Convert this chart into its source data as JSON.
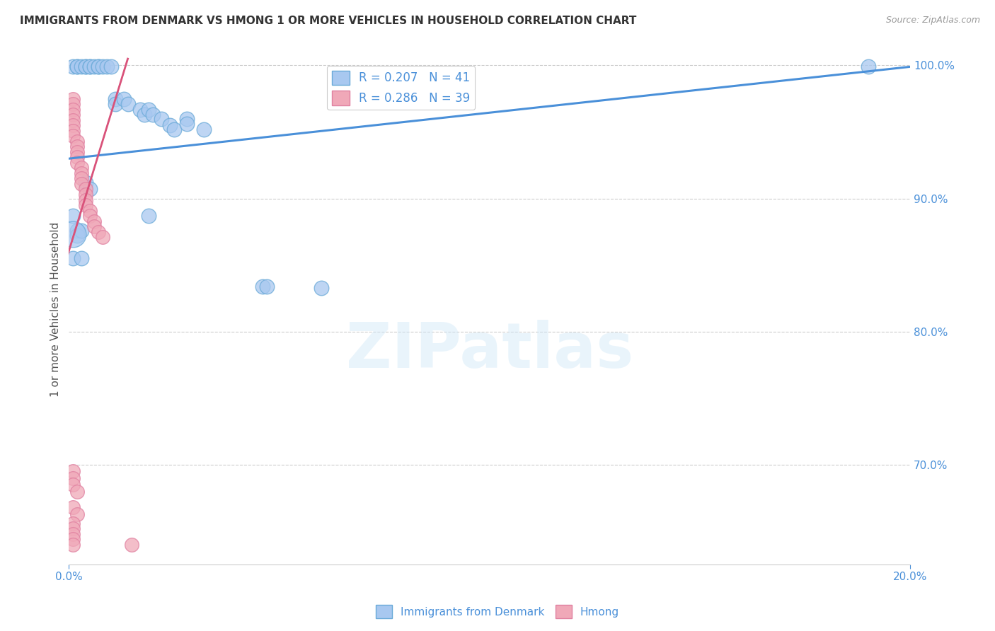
{
  "title": "IMMIGRANTS FROM DENMARK VS HMONG 1 OR MORE VEHICLES IN HOUSEHOLD CORRELATION CHART",
  "source": "Source: ZipAtlas.com",
  "ylabel": "1 or more Vehicles in Household",
  "x_min": 0.0,
  "x_max": 0.2,
  "y_min": 0.625,
  "y_max": 1.008,
  "y_ticks": [
    0.7,
    0.8,
    0.9,
    1.0
  ],
  "y_tick_labels": [
    "70.0%",
    "80.0%",
    "90.0%",
    "100.0%"
  ],
  "legend_entries": [
    {
      "label": "R = 0.207   N = 41",
      "color": "#a8c8f0"
    },
    {
      "label": "R = 0.286   N = 39",
      "color": "#f0a8b8"
    }
  ],
  "watermark": "ZIPatlas",
  "blue_line_color": "#4a90d9",
  "pink_line_color": "#d9527a",
  "blue_scatter_color": "#a8c8f0",
  "pink_scatter_color": "#f0a8b8",
  "blue_scatter_edge": "#6aaad8",
  "pink_scatter_edge": "#e080a0",
  "blue_points": [
    [
      0.001,
      0.999
    ],
    [
      0.002,
      0.999
    ],
    [
      0.002,
      0.999
    ],
    [
      0.003,
      0.999
    ],
    [
      0.004,
      0.999
    ],
    [
      0.004,
      0.999
    ],
    [
      0.005,
      0.999
    ],
    [
      0.005,
      0.999
    ],
    [
      0.006,
      0.999
    ],
    [
      0.007,
      0.999
    ],
    [
      0.007,
      0.999
    ],
    [
      0.008,
      0.999
    ],
    [
      0.009,
      0.999
    ],
    [
      0.01,
      0.999
    ],
    [
      0.011,
      0.975
    ],
    [
      0.011,
      0.971
    ],
    [
      0.013,
      0.975
    ],
    [
      0.014,
      0.971
    ],
    [
      0.017,
      0.967
    ],
    [
      0.018,
      0.963
    ],
    [
      0.019,
      0.967
    ],
    [
      0.02,
      0.963
    ],
    [
      0.022,
      0.96
    ],
    [
      0.024,
      0.955
    ],
    [
      0.025,
      0.952
    ],
    [
      0.028,
      0.96
    ],
    [
      0.028,
      0.956
    ],
    [
      0.032,
      0.952
    ],
    [
      0.001,
      0.887
    ],
    [
      0.002,
      0.876
    ],
    [
      0.002,
      0.872
    ],
    [
      0.003,
      0.876
    ],
    [
      0.019,
      0.887
    ],
    [
      0.046,
      0.834
    ],
    [
      0.047,
      0.834
    ],
    [
      0.001,
      0.855
    ],
    [
      0.003,
      0.855
    ],
    [
      0.06,
      0.833
    ],
    [
      0.19,
      0.999
    ],
    [
      0.004,
      0.912
    ],
    [
      0.005,
      0.907
    ]
  ],
  "pink_points": [
    [
      0.001,
      0.975
    ],
    [
      0.001,
      0.971
    ],
    [
      0.001,
      0.967
    ],
    [
      0.001,
      0.963
    ],
    [
      0.001,
      0.959
    ],
    [
      0.001,
      0.955
    ],
    [
      0.001,
      0.951
    ],
    [
      0.001,
      0.947
    ],
    [
      0.002,
      0.943
    ],
    [
      0.002,
      0.939
    ],
    [
      0.002,
      0.935
    ],
    [
      0.002,
      0.931
    ],
    [
      0.002,
      0.927
    ],
    [
      0.003,
      0.923
    ],
    [
      0.003,
      0.919
    ],
    [
      0.003,
      0.915
    ],
    [
      0.003,
      0.911
    ],
    [
      0.004,
      0.907
    ],
    [
      0.004,
      0.903
    ],
    [
      0.004,
      0.899
    ],
    [
      0.004,
      0.895
    ],
    [
      0.005,
      0.891
    ],
    [
      0.005,
      0.887
    ],
    [
      0.006,
      0.883
    ],
    [
      0.006,
      0.879
    ],
    [
      0.007,
      0.875
    ],
    [
      0.008,
      0.871
    ],
    [
      0.001,
      0.695
    ],
    [
      0.001,
      0.69
    ],
    [
      0.001,
      0.685
    ],
    [
      0.002,
      0.68
    ],
    [
      0.001,
      0.668
    ],
    [
      0.002,
      0.663
    ],
    [
      0.015,
      0.64
    ],
    [
      0.001,
      0.656
    ],
    [
      0.001,
      0.652
    ],
    [
      0.001,
      0.648
    ],
    [
      0.001,
      0.644
    ],
    [
      0.001,
      0.64
    ]
  ],
  "blue_line_x": [
    0.0,
    0.2
  ],
  "blue_line_y": [
    0.93,
    0.999
  ],
  "pink_line_x": [
    -0.002,
    0.014
  ],
  "pink_line_y": [
    0.84,
    1.005
  ],
  "grid_color": "#cccccc",
  "background_color": "#ffffff",
  "title_color": "#333333",
  "axis_color": "#4a90d9",
  "legend_text_color": "#4a90d9"
}
